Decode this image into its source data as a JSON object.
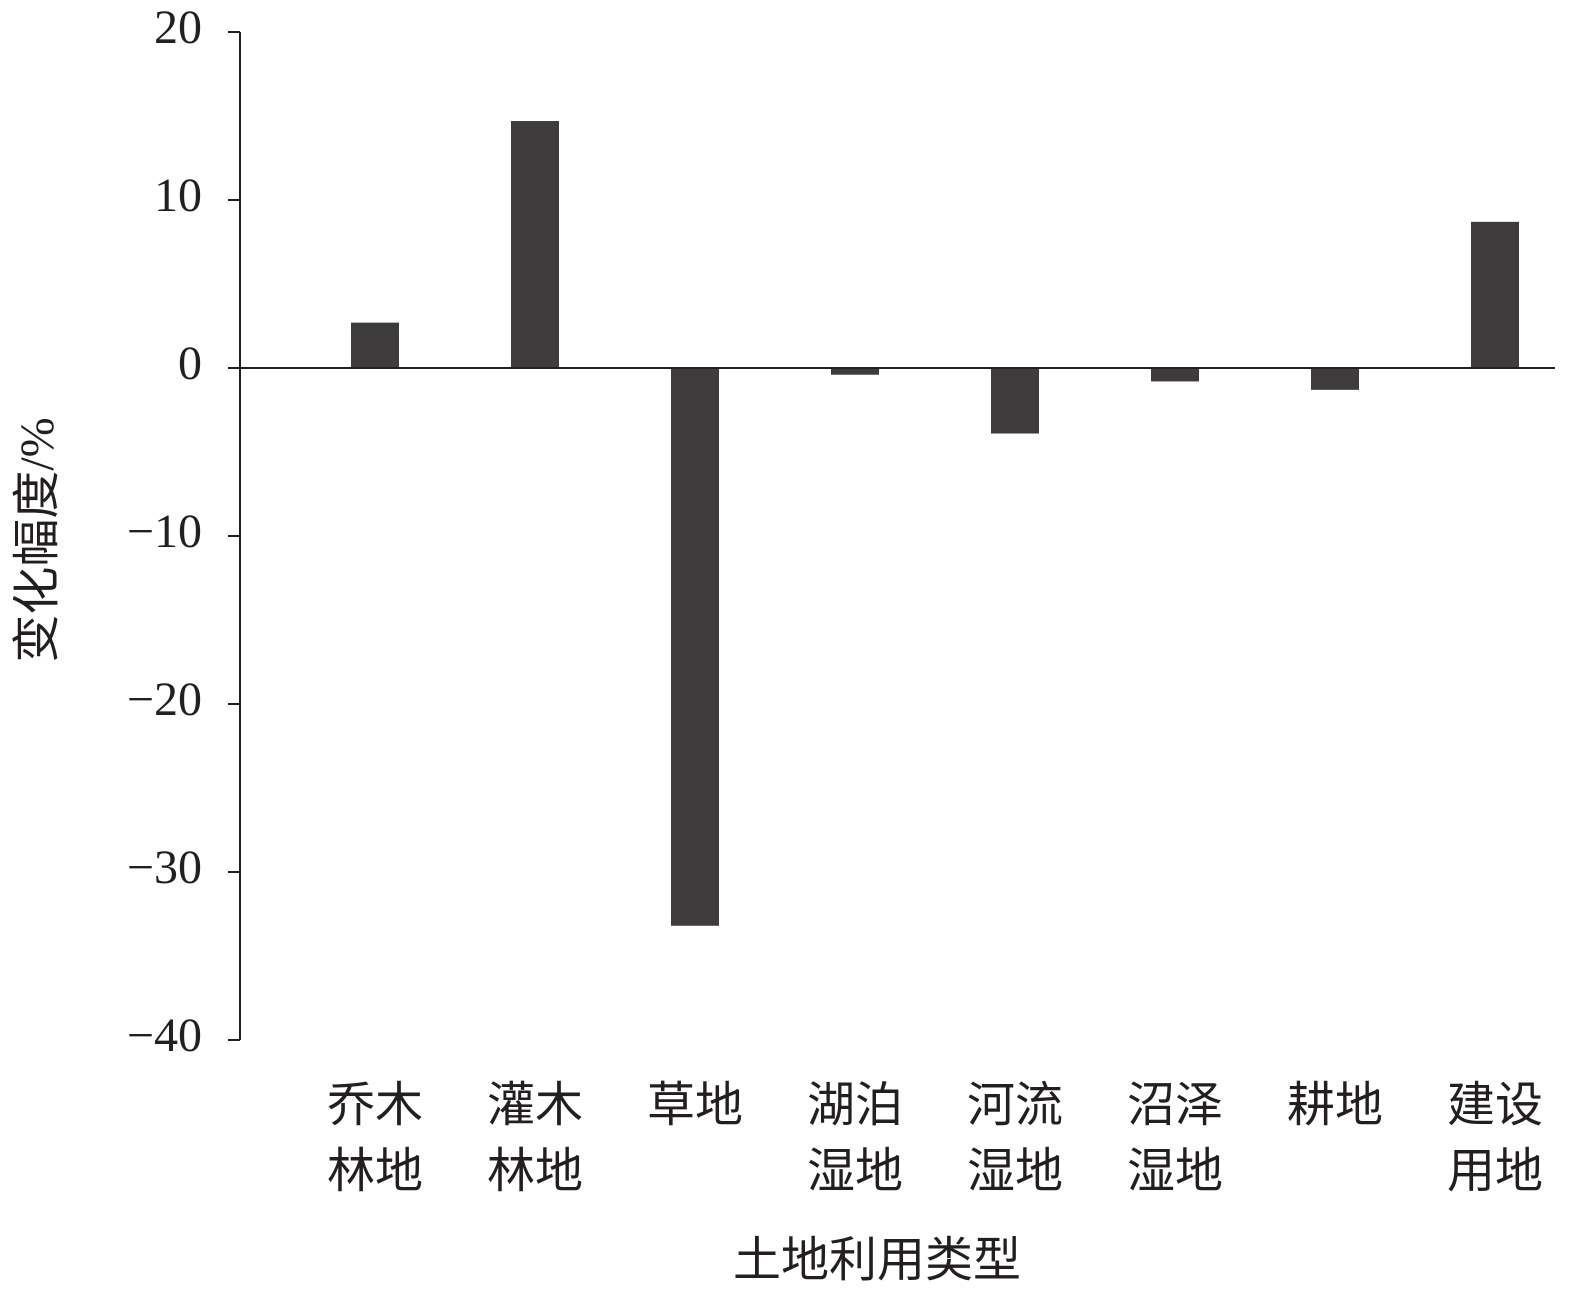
{
  "chart_data": {
    "type": "bar",
    "y_label": "变化幅度/%",
    "x_label": "土地利用类型",
    "categories": [
      [
        "乔木",
        "林地"
      ],
      [
        "灌木",
        "林地"
      ],
      [
        "草地"
      ],
      [
        "湖泊",
        "湿地"
      ],
      [
        "河流",
        "湿地"
      ],
      [
        "沼泽",
        "湿地"
      ],
      [
        "耕地"
      ],
      [
        "建设",
        "用地"
      ]
    ],
    "values": [
      2.7,
      14.7,
      -33.2,
      -0.4,
      -3.9,
      -0.8,
      -1.3,
      8.7
    ],
    "color": "#3d3b3c",
    "ylim": [
      -40,
      20
    ],
    "yticks": [
      20,
      10,
      0,
      {
        "value": -10,
        "label": "−10"
      },
      {
        "value": -20,
        "label": "−20"
      },
      {
        "value": -30,
        "label": "−30"
      },
      {
        "value": -40,
        "label": "−40"
      }
    ],
    "grid": false
  }
}
